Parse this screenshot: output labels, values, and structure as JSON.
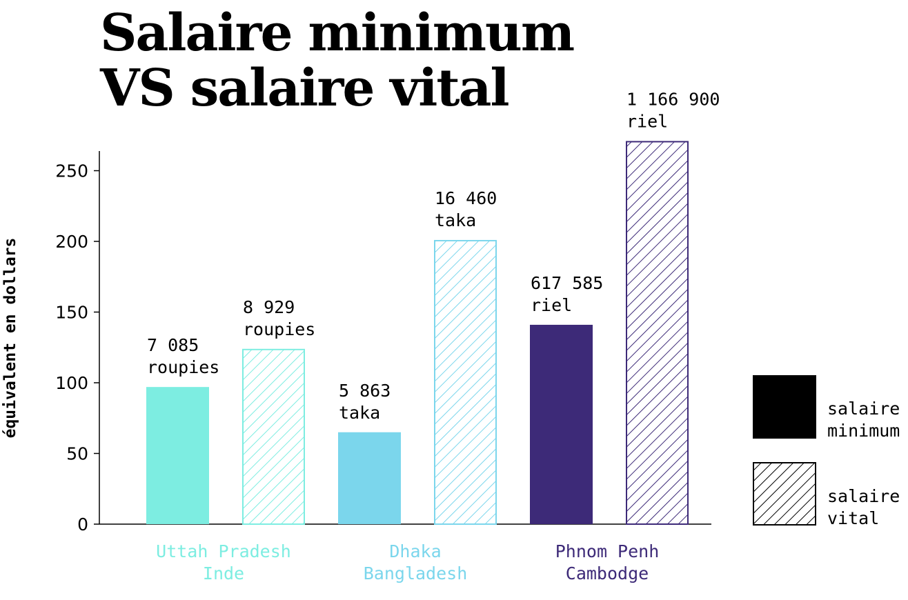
{
  "title_line1": "Salaire minimum",
  "title_line2": "VS salaire vital",
  "chart_data": {
    "type": "bar",
    "title": "Salaire minimum VS salaire vital",
    "ylabel": "équivalent en dollars",
    "xlabel": "",
    "ylim": [
      0,
      260
    ],
    "yticks": [
      0,
      50,
      100,
      150,
      200,
      250
    ],
    "legend_position": "right",
    "legend": [
      {
        "label_line1": "salaire",
        "label_line2": "minimum",
        "style": "solid"
      },
      {
        "label_line1": "salaire",
        "label_line2": "vital",
        "style": "hatched"
      }
    ],
    "groups": [
      {
        "name_line1": "Uttah Pradesh",
        "name_line2": "Inde",
        "color": "#7DEDE1",
        "minimum": {
          "value": 97,
          "label_line1": "7 085",
          "label_line2": "roupies"
        },
        "vital": {
          "value": 124,
          "label_line1": "8 929",
          "label_line2": "roupies"
        }
      },
      {
        "name_line1": "Dhaka",
        "name_line2": "Bangladesh",
        "color": "#7BD6EC",
        "minimum": {
          "value": 65,
          "label_line1": "5 863",
          "label_line2": "taka"
        },
        "vital": {
          "value": 201,
          "label_line1": "16 460",
          "label_line2": "taka"
        }
      },
      {
        "name_line1": "Phnom Penh",
        "name_line2": "Cambodge",
        "color": "#3D2A78",
        "minimum": {
          "value": 141,
          "label_line1": "617 585",
          "label_line2": "riel"
        },
        "vital": {
          "value": 271,
          "label_line1": "1 166 900",
          "label_line2": "riel"
        }
      }
    ]
  }
}
